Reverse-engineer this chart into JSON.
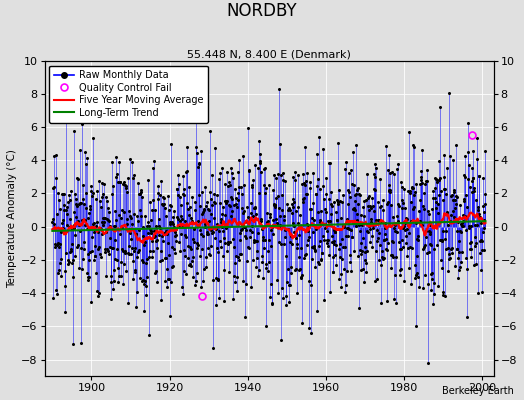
{
  "title": "NORDBY",
  "subtitle": "55.448 N, 8.400 E (Denmark)",
  "ylabel": "Temperature Anomaly (°C)",
  "xlabel_credit": "Berkeley Earth",
  "xlim": [
    1888,
    2003
  ],
  "ylim": [
    -9,
    10
  ],
  "yticks": [
    -8,
    -6,
    -4,
    -2,
    0,
    2,
    4,
    6,
    8,
    10
  ],
  "xticks": [
    1900,
    1920,
    1940,
    1960,
    1980,
    2000
  ],
  "bg_color": "#e0e0e0",
  "seed": 17,
  "start_year": 1890.0,
  "end_year": 2001.0,
  "noise_std": 2.2,
  "qc_fails": [
    {
      "year": 1928.3,
      "value": -4.2
    },
    {
      "year": 1997.5,
      "value": 5.5
    }
  ]
}
